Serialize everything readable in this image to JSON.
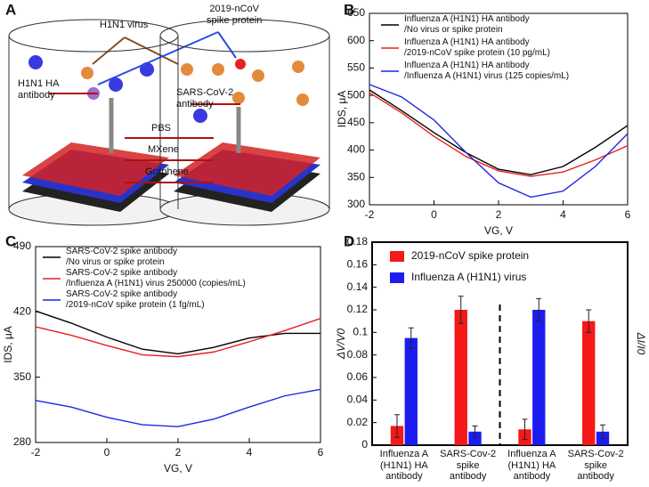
{
  "diagram": {
    "panel_label": "A",
    "labels": [
      "H1N1 virus",
      "2019-nCoV\nspike protein",
      "H1N1 HA\nantibody",
      "SARS-CoV-2\nantibody",
      "PBS",
      "MXene",
      "Graphene"
    ]
  },
  "chart_data": [
    {
      "type": "line",
      "panel_label": "B",
      "xlabel": "VG, V",
      "ylabel": "IDS, μA",
      "xlim": [
        -2,
        6
      ],
      "xticks": [
        -2,
        0,
        2,
        4,
        6
      ],
      "ylim": [
        300,
        650
      ],
      "yticks": [
        300,
        350,
        400,
        450,
        500,
        550,
        600,
        650
      ],
      "x": [
        -2,
        -1,
        0,
        1,
        2,
        3,
        4,
        5,
        6
      ],
      "series": [
        {
          "name": "Influenza A (H1N1) HA antibody\n/No virus or spike protein",
          "color": "#000000",
          "values": [
            510,
            472,
            432,
            395,
            365,
            355,
            370,
            405,
            445
          ]
        },
        {
          "name": "Influenza A (H1N1) HA antibody\n/2019-nCoV spike protein (10 pg/mL)",
          "color": "#e8201c",
          "values": [
            505,
            468,
            425,
            388,
            362,
            352,
            360,
            382,
            408
          ]
        },
        {
          "name": "Influenza A (H1N1) HA antibody\n/Influenza A (H1N1) virus (125 copies/mL)",
          "color": "#1f25e6",
          "values": [
            520,
            497,
            455,
            395,
            340,
            314,
            325,
            370,
            430
          ]
        }
      ]
    },
    {
      "type": "line",
      "panel_label": "C",
      "xlabel": "VG, V",
      "ylabel": "IDS, μA",
      "xlim": [
        -2,
        6
      ],
      "xticks": [
        -2,
        0,
        2,
        4,
        6
      ],
      "ylim": [
        280,
        490
      ],
      "yticks": [
        280,
        350,
        420,
        490
      ],
      "x": [
        -2,
        -1,
        0,
        1,
        2,
        3,
        4,
        5,
        6
      ],
      "series": [
        {
          "name": "SARS-CoV-2 spike antibody\n/No virus or spike protein",
          "color": "#000000",
          "values": [
            421,
            408,
            393,
            380,
            375,
            382,
            392,
            397,
            397
          ]
        },
        {
          "name": "SARS-CoV-2 spike antibody\n/Influenza A (H1N1) virus 250000 (copies/mL)",
          "color": "#e8201c",
          "values": [
            404,
            395,
            384,
            374,
            372,
            377,
            388,
            400,
            413
          ]
        },
        {
          "name": "SARS-CoV-2 spike antibody\n/2019-nCoV spike protein (1 fg/mL)",
          "color": "#1f25e6",
          "values": [
            325,
            318,
            307,
            299,
            297,
            305,
            318,
            330,
            337
          ]
        }
      ]
    },
    {
      "type": "bar",
      "panel_label": "D",
      "ylabel": "ΔV/V0",
      "y2label": "ΔI/I0",
      "categories": [
        "Influenza A\n(H1N1) HA\nantibody",
        "SARS-Cov-2\nspike\nantibody",
        "Influenza A\n(H1N1) HA\nantibody",
        "SARS-Cov-2\nspike\nantibody"
      ],
      "ylim": [
        0,
        0.18
      ],
      "yticks": [
        0,
        0.02,
        0.04,
        0.06,
        0.08,
        0.1,
        0.12,
        0.14,
        0.16,
        0.18
      ],
      "series": [
        {
          "name": "2019-nCoV spike protein",
          "color": "#f51818",
          "values": [
            0.017,
            0.12,
            0.014,
            0.11
          ],
          "errors": [
            0.01,
            0.012,
            0.009,
            0.01
          ]
        },
        {
          "name": "Influenza A (H1N1) virus",
          "color": "#1c1cf0",
          "values": [
            0.095,
            0.012,
            0.12,
            0.012
          ],
          "errors": [
            0.009,
            0.005,
            0.01,
            0.006
          ]
        }
      ]
    }
  ]
}
